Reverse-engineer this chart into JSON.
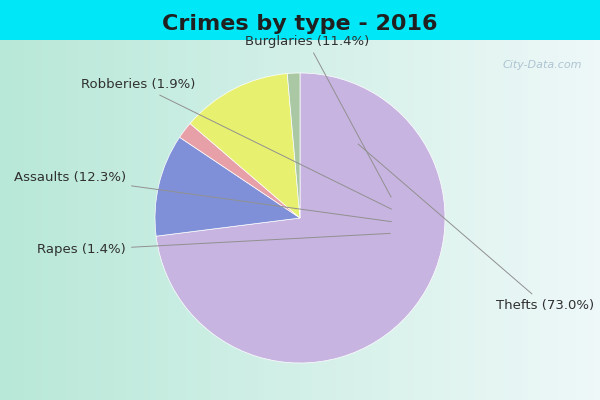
{
  "title": "Crimes by type - 2016",
  "labels": [
    "Thefts",
    "Burglaries",
    "Robberies",
    "Assaults",
    "Rapes"
  ],
  "values": [
    73.0,
    11.4,
    1.9,
    12.3,
    1.4
  ],
  "colors": [
    "#c8b4e0",
    "#8090d8",
    "#e8a0a8",
    "#e8f070",
    "#aac8a4"
  ],
  "background_top": "#00e8f8",
  "background_body_left": "#b8e8d8",
  "background_body_right": "#e8f4f8",
  "title_fontsize": 16,
  "label_fontsize": 9.5,
  "startangle": 90,
  "label_color": "#303030"
}
